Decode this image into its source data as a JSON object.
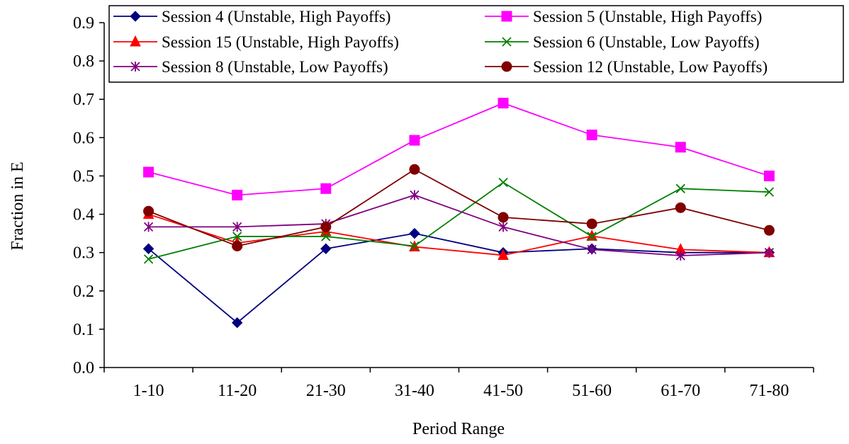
{
  "chart_data": {
    "type": "line",
    "xlabel": "Period Range",
    "ylabel": "Fraction in E",
    "categories": [
      "1-10",
      "11-20",
      "21-30",
      "31-40",
      "41-50",
      "51-60",
      "61-70",
      "71-80"
    ],
    "ylim": [
      0,
      0.9
    ],
    "yticks": [
      "0.0",
      "0.1",
      "0.2",
      "0.3",
      "0.4",
      "0.5",
      "0.6",
      "0.7",
      "0.8",
      "0.9"
    ],
    "grid": false,
    "legend_position": "top",
    "series": [
      {
        "name": "Session 4 (Unstable, High Payoffs)",
        "color": "#000080",
        "marker": "diamond",
        "values": [
          0.31,
          0.117,
          0.31,
          0.35,
          0.3,
          0.31,
          0.3,
          0.3
        ]
      },
      {
        "name": "Session 5 (Unstable, High Payoffs)",
        "color": "#FF00FF",
        "marker": "square",
        "values": [
          0.51,
          0.45,
          0.467,
          0.593,
          0.69,
          0.607,
          0.575,
          0.5
        ]
      },
      {
        "name": "Session 15 (Unstable, High Payoffs)",
        "color": "#FF0000",
        "marker": "triangle",
        "values": [
          0.4,
          0.325,
          0.355,
          0.315,
          0.293,
          0.343,
          0.308,
          0.3
        ]
      },
      {
        "name": "Session 6 (Unstable, Low Payoffs)",
        "color": "#008000",
        "marker": "x",
        "values": [
          0.283,
          0.342,
          0.342,
          0.317,
          0.483,
          0.342,
          0.467,
          0.458
        ]
      },
      {
        "name": "Session 8 (Unstable, Low Payoffs)",
        "color": "#800080",
        "marker": "star",
        "values": [
          0.367,
          0.367,
          0.375,
          0.45,
          0.367,
          0.308,
          0.292,
          0.3
        ]
      },
      {
        "name": "Session 12 (Unstable, Low Payoffs)",
        "color": "#800000",
        "marker": "circle",
        "values": [
          0.408,
          0.317,
          0.367,
          0.517,
          0.392,
          0.375,
          0.417,
          0.358
        ]
      }
    ]
  }
}
